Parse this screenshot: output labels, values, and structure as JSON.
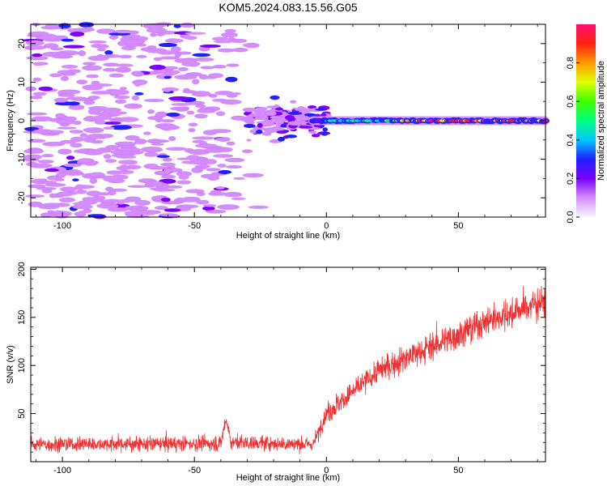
{
  "title": "KOM5.2024.083.15.56.G05",
  "chart_data": [
    {
      "type": "heatmap",
      "xlabel": "Height of straight line (km)",
      "ylabel": "Frequency (Hz)",
      "xlim": [
        -112,
        83
      ],
      "ylim": [
        -25,
        25
      ],
      "xticks": [
        -100,
        -50,
        0,
        50
      ],
      "xtick_labels": [
        "-100",
        "-50",
        "0",
        "50"
      ],
      "yticks": [
        -20,
        -10,
        0,
        10,
        20
      ],
      "ytick_labels": [
        "-20",
        "-10",
        "0",
        "10",
        "20"
      ],
      "colorbar": {
        "label": "Normalized spectral amplitude",
        "range": [
          0,
          1
        ],
        "ticks": [
          0.0,
          0.2,
          0.4,
          0.6,
          0.8
        ],
        "tick_labels": [
          "0.0",
          "0.2",
          "0.4",
          "0.6",
          "0.8"
        ],
        "colors": [
          "#f7f7ff",
          "#d58cff",
          "#7a00ff",
          "#2020ff",
          "#00c8ff",
          "#00ff80",
          "#40ff00",
          "#e0ff00",
          "#ff9900",
          "#ff2010",
          "#ff1070"
        ]
      },
      "features": {
        "noise_region_x": [
          -112,
          -25
        ],
        "transition_region_x": [
          -30,
          0
        ],
        "signal_band": {
          "x_start": -5,
          "x_end": 83,
          "frequency_hz": 0
        }
      },
      "grid": false
    },
    {
      "type": "line",
      "xlabel": "Height of straight line (km)",
      "ylabel": "SNR (v/v)",
      "xlim": [
        -112,
        83
      ],
      "ylim": [
        0,
        202
      ],
      "xticks": [
        -100,
        -50,
        0,
        50
      ],
      "xtick_labels": [
        "-100",
        "-50",
        "0",
        "50"
      ],
      "yticks": [
        50,
        100,
        150,
        200
      ],
      "ytick_labels": [
        "50",
        "100",
        "150",
        "200"
      ],
      "line_color": "#f03030",
      "trend": [
        {
          "x": -112,
          "y": 18
        },
        {
          "x": -40,
          "y": 19
        },
        {
          "x": -38,
          "y": 45
        },
        {
          "x": -36,
          "y": 20
        },
        {
          "x": -5,
          "y": 18
        },
        {
          "x": 0,
          "y": 50
        },
        {
          "x": 20,
          "y": 95
        },
        {
          "x": 40,
          "y": 120
        },
        {
          "x": 60,
          "y": 145
        },
        {
          "x": 83,
          "y": 168
        }
      ],
      "grid": false
    }
  ]
}
